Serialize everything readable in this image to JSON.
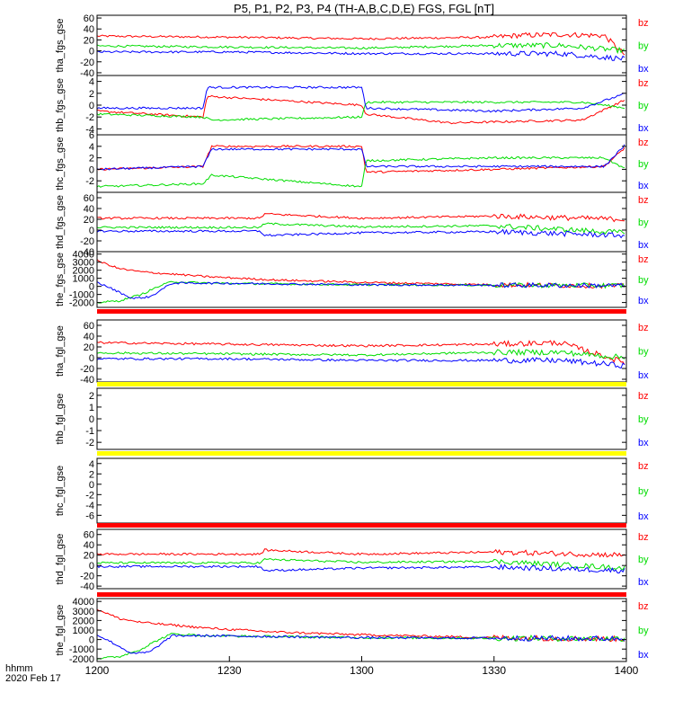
{
  "title": "P5, P1, P2, P3, P4 (TH-A,B,C,D,E) FGS, FGL [nT]",
  "footer": {
    "hhmm": "hhmm",
    "date": "2020 Feb 17"
  },
  "colors": {
    "bx": "#0000ff",
    "by": "#00dd00",
    "bz": "#ff0000",
    "bar_red": "#ff0000",
    "bar_yellow": "#ffff00",
    "frame": "#000000"
  },
  "chart_data": {
    "type": "line",
    "x_ticks": [
      1200,
      1230,
      1300,
      1330,
      1400
    ],
    "x_tick_labels": [
      "1200",
      "1230",
      "1300",
      "1330",
      "1400"
    ],
    "xlim": [
      0,
      120
    ],
    "xunit": "minutes after 12:00 UT",
    "panels": [
      {
        "ylabel": "tha_fgs_gse",
        "ylim": [
          -45,
          65
        ],
        "yticks": [
          60,
          40,
          20,
          0,
          -20,
          -40
        ],
        "legend": [
          "bz",
          "by",
          "bx"
        ],
        "series": {
          "bz": {
            "name": "bz",
            "x": [
              0,
              30,
              60,
              90,
              95,
              105,
              115,
              120
            ],
            "y": [
              27,
              25,
              22,
              25,
              28,
              30,
              28,
              -10
            ]
          },
          "by": {
            "name": "by",
            "x": [
              0,
              30,
              60,
              90,
              105,
              120
            ],
            "y": [
              9,
              7,
              5,
              10,
              10,
              0
            ]
          },
          "bx": {
            "name": "bx",
            "x": [
              0,
              30,
              60,
              90,
              105,
              120
            ],
            "y": [
              -2,
              -2,
              -5,
              -5,
              -5,
              -15
            ]
          }
        },
        "bar": null
      },
      {
        "ylabel": "thb_fgs_gse",
        "ylim": [
          -5,
          5
        ],
        "yticks": [
          4,
          2,
          0,
          -2,
          -4
        ],
        "legend": [
          "bz",
          "by",
          "bx"
        ],
        "series": {
          "bz": {
            "name": "bz",
            "x": [
              0,
              24,
              25,
              60,
              61,
              80,
              110,
              120
            ],
            "y": [
              -1,
              -2,
              1.5,
              0,
              -1.5,
              -3,
              -2.5,
              1
            ]
          },
          "by": {
            "name": "by",
            "x": [
              0,
              24,
              26,
              60,
              61,
              80,
              110,
              120
            ],
            "y": [
              -1.5,
              -2,
              -2.5,
              -2,
              0.5,
              0.5,
              0.5,
              -0.5
            ]
          },
          "bx": {
            "name": "bx",
            "x": [
              0,
              24,
              25,
              60,
              61,
              90,
              110,
              120
            ],
            "y": [
              -0.5,
              -0.5,
              3,
              3,
              -0.5,
              -1,
              -0.5,
              2
            ]
          }
        },
        "bar": null
      },
      {
        "ylabel": "thc_fgs_gse",
        "ylim": [
          -4,
          6
        ],
        "yticks": [
          6,
          4,
          2,
          0,
          -2
        ],
        "legend": [
          "bz",
          "by",
          "bx"
        ],
        "series": {
          "bz": {
            "name": "bz",
            "x": [
              0,
              24,
              26,
              60,
              61,
              90,
              115,
              120
            ],
            "y": [
              0,
              0.5,
              4,
              4,
              -0.5,
              0,
              0.5,
              4
            ]
          },
          "by": {
            "name": "by",
            "x": [
              0,
              24,
              26,
              60,
              61,
              90,
              115,
              120
            ],
            "y": [
              -3,
              -2.5,
              -1,
              -3,
              1.5,
              2,
              2,
              0
            ]
          },
          "bx": {
            "name": "bx",
            "x": [
              0,
              24,
              26,
              60,
              61,
              90,
              115,
              120
            ],
            "y": [
              0,
              0.5,
              3.5,
              3.5,
              0.5,
              0.5,
              0.5,
              4.5
            ]
          }
        },
        "bar": null
      },
      {
        "ylabel": "thd_fgs_gse",
        "ylim": [
          -40,
          70
        ],
        "yticks": [
          60,
          40,
          20,
          0,
          -20,
          -40
        ],
        "legend": [
          "bz",
          "by",
          "bx"
        ],
        "series": {
          "bz": {
            "name": "bz",
            "x": [
              0,
              37,
              38,
              60,
              90,
              120
            ],
            "y": [
              22,
              22,
              30,
              22,
              26,
              20
            ]
          },
          "by": {
            "name": "by",
            "x": [
              0,
              37,
              38,
              60,
              90,
              120
            ],
            "y": [
              5,
              5,
              12,
              6,
              8,
              -5
            ]
          },
          "bx": {
            "name": "bx",
            "x": [
              0,
              37,
              38,
              60,
              90,
              120
            ],
            "y": [
              -2,
              -2,
              -10,
              -5,
              -3,
              -10
            ]
          }
        },
        "bar": {
          "type": "red",
          "label": ""
        }
      },
      {
        "ylabel": "the_fgs_gse",
        "ylim": [
          -2600,
          4300
        ],
        "yticks": [
          4000,
          3000,
          2000,
          1000,
          0,
          -1000,
          -2000
        ],
        "legend": [
          "bz",
          "by",
          "bx"
        ],
        "series": {
          "bz": {
            "name": "bz",
            "x": [
              0,
              5,
              10,
              15,
              25,
              40,
              60,
              90,
              120
            ],
            "y": [
              3200,
              2200,
              1800,
              1600,
              1200,
              800,
              500,
              200,
              50
            ]
          },
          "by": {
            "name": "by",
            "x": [
              0,
              5,
              10,
              14,
              17,
              25,
              60,
              120
            ],
            "y": [
              -2000,
              -1800,
              -1000,
              0,
              600,
              400,
              200,
              100
            ]
          },
          "bx": {
            "name": "bx",
            "x": [
              0,
              3,
              8,
              12,
              17,
              25,
              60,
              120
            ],
            "y": [
              500,
              -200,
              -1500,
              -1300,
              400,
              400,
              200,
              100
            ]
          }
        },
        "bar": {
          "type": "red",
          "label": ""
        }
      },
      {
        "ylabel": "tha_fgl_gse",
        "ylim": [
          -45,
          70
        ],
        "yticks": [
          60,
          40,
          20,
          0,
          -20,
          -40
        ],
        "legend": [
          "bz",
          "by",
          "bx"
        ],
        "series": {
          "bz": {
            "name": "bz",
            "x": [
              0,
              30,
              60,
              90,
              105,
              120
            ],
            "y": [
              28,
              25,
              22,
              25,
              28,
              -10
            ]
          },
          "by": {
            "name": "by",
            "x": [
              0,
              30,
              60,
              90,
              105,
              120
            ],
            "y": [
              9,
              7,
              5,
              10,
              10,
              0
            ]
          },
          "bx": {
            "name": "bx",
            "x": [
              0,
              30,
              60,
              90,
              105,
              120
            ],
            "y": [
              -2,
              -2,
              -5,
              -5,
              -5,
              -15
            ]
          }
        },
        "bar": {
          "type": "yellow",
          "label": ""
        }
      },
      {
        "ylabel": "thb_fgl_gse",
        "ylim": [
          -2.6,
          2.6
        ],
        "yticks": [
          2,
          1,
          0,
          -1,
          -2
        ],
        "legend": [
          "bz",
          "by",
          "bx"
        ],
        "series": null,
        "bar": {
          "type": "yellow",
          "label": ""
        }
      },
      {
        "ylabel": "thc_fgl_gse",
        "ylim": [
          -7.5,
          5
        ],
        "yticks": [
          4,
          2,
          0,
          -2,
          -4,
          -6
        ],
        "legend": [
          "bz",
          "by",
          "bx"
        ],
        "series": null,
        "bar": {
          "type": "red",
          "label": ""
        }
      },
      {
        "ylabel": "thd_fgl_gse",
        "ylim": [
          -45,
          70
        ],
        "yticks": [
          60,
          40,
          20,
          0,
          -20,
          -40
        ],
        "legend": [
          "bz",
          "by",
          "bx"
        ],
        "series": {
          "bz": {
            "name": "bz",
            "x": [
              0,
              37,
              38,
              60,
              90,
              120
            ],
            "y": [
              22,
              22,
              30,
              22,
              26,
              20
            ]
          },
          "by": {
            "name": "by",
            "x": [
              0,
              37,
              38,
              60,
              90,
              120
            ],
            "y": [
              5,
              5,
              12,
              6,
              8,
              -5
            ]
          },
          "bx": {
            "name": "bx",
            "x": [
              0,
              37,
              38,
              60,
              90,
              120
            ],
            "y": [
              -2,
              -2,
              -10,
              -5,
              -3,
              -10
            ]
          }
        },
        "bar": {
          "type": "red",
          "label": ""
        }
      },
      {
        "ylabel": "the_fgl_gse",
        "ylim": [
          -2300,
          4300
        ],
        "yticks": [
          4000,
          3000,
          2000,
          1000,
          0,
          -1000,
          -2000
        ],
        "legend": [
          "bz",
          "by",
          "bx"
        ],
        "series": {
          "bz": {
            "name": "bz",
            "x": [
              0,
              5,
              10,
              15,
              25,
              40,
              60,
              90,
              120
            ],
            "y": [
              3200,
              2200,
              1800,
              1600,
              1200,
              800,
              500,
              200,
              50
            ]
          },
          "by": {
            "name": "by",
            "x": [
              0,
              5,
              10,
              14,
              17,
              25,
              60,
              120
            ],
            "y": [
              -2000,
              -1800,
              -1000,
              0,
              600,
              400,
              200,
              100
            ]
          },
          "bx": {
            "name": "bx",
            "x": [
              0,
              3,
              8,
              12,
              17,
              25,
              60,
              120
            ],
            "y": [
              500,
              -200,
              -1500,
              -1300,
              400,
              400,
              200,
              100
            ]
          }
        },
        "bar": null
      }
    ]
  }
}
